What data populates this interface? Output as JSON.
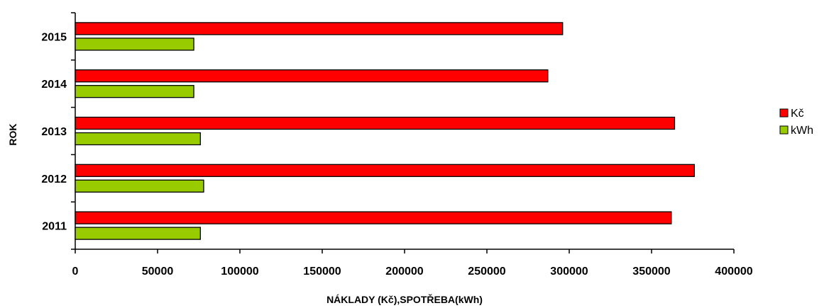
{
  "chart_data": {
    "type": "bar",
    "orientation": "horizontal",
    "title": "",
    "xlabel": "NÁKLADY (Kč),SPOTŘEBA(kWh)",
    "ylabel": "ROK",
    "categories": [
      "2011",
      "2012",
      "2013",
      "2014",
      "2015"
    ],
    "series": [
      {
        "name": "Kč",
        "color": "#ff0000",
        "values": [
          362000,
          376000,
          364000,
          287000,
          296000
        ]
      },
      {
        "name": "kWh",
        "color": "#99cc00",
        "values": [
          76000,
          78000,
          76000,
          72000,
          72000
        ]
      }
    ],
    "xlim": [
      0,
      400000
    ],
    "xticks": [
      "0",
      "50000",
      "100000",
      "150000",
      "200000",
      "250000",
      "300000",
      "350000",
      "400000"
    ],
    "grid": false,
    "legend_position": "right"
  }
}
